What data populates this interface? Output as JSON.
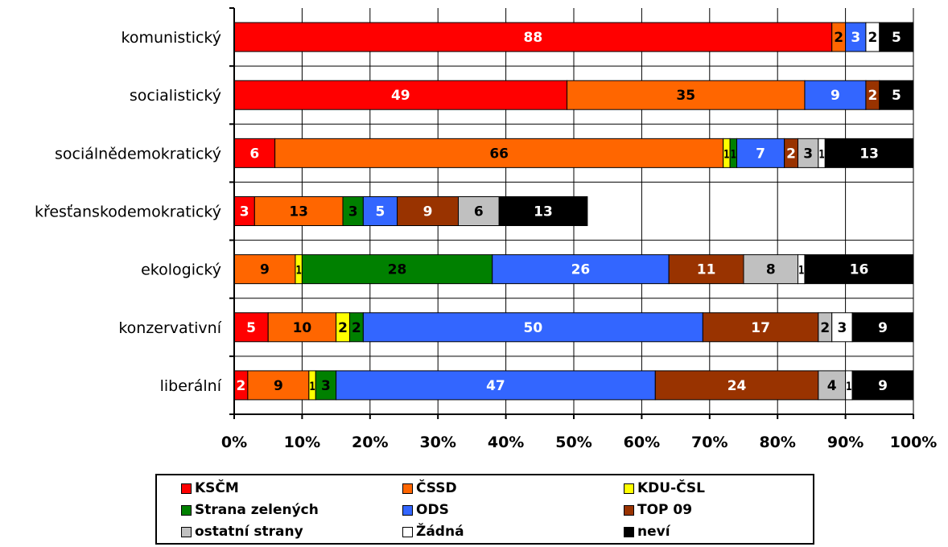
{
  "chart_data": {
    "type": "bar",
    "orientation": "horizontal",
    "stacked": "percent",
    "categories": [
      "komunistický",
      "socialistický",
      "sociálnědemokratický",
      "křesťanskodemokratický",
      "ekologický",
      "konzervativní",
      "liberální"
    ],
    "series": [
      {
        "name": "KSČM",
        "color": "#ff0000",
        "label_color": "#ffffff",
        "values": [
          88,
          49,
          6,
          3,
          0,
          5,
          2
        ]
      },
      {
        "name": "ČSSD",
        "color": "#ff6600",
        "label_color": "#000000",
        "values": [
          2,
          35,
          66,
          13,
          9,
          10,
          9
        ]
      },
      {
        "name": "KDU-ČSL",
        "color": "#ffff00",
        "label_color": "#000000",
        "values": [
          0,
          0,
          1,
          0,
          1,
          2,
          1
        ]
      },
      {
        "name": "Strana zelených",
        "color": "#008000",
        "label_color": "#000000",
        "values": [
          0,
          0,
          1,
          3,
          28,
          2,
          3
        ]
      },
      {
        "name": "ODS",
        "color": "#3366ff",
        "label_color": "#ffffff",
        "values": [
          3,
          9,
          7,
          5,
          26,
          50,
          47
        ]
      },
      {
        "name": "TOP 09",
        "color": "#993300",
        "label_color": "#ffffff",
        "values": [
          0,
          2,
          2,
          9,
          11,
          17,
          24
        ]
      },
      {
        "name": "ostatní strany",
        "color": "#c0c0c0",
        "label_color": "#000000",
        "values": [
          0,
          0,
          3,
          6,
          8,
          2,
          4
        ]
      },
      {
        "name": "Žádná",
        "color": "#ffffff",
        "label_color": "#000000",
        "values": [
          2,
          0,
          1,
          0,
          1,
          3,
          1
        ]
      },
      {
        "name": "neví",
        "color": "#000000",
        "label_color": "#ffffff",
        "values": [
          5,
          5,
          13,
          13,
          16,
          9,
          9
        ]
      }
    ],
    "x_ticks": [
      "0%",
      "10%",
      "20%",
      "30%",
      "40%",
      "50%",
      "60%",
      "70%",
      "80%",
      "90%",
      "100%"
    ],
    "xlim": [
      0,
      100
    ],
    "grid": "vertical",
    "legend_position": "bottom"
  }
}
